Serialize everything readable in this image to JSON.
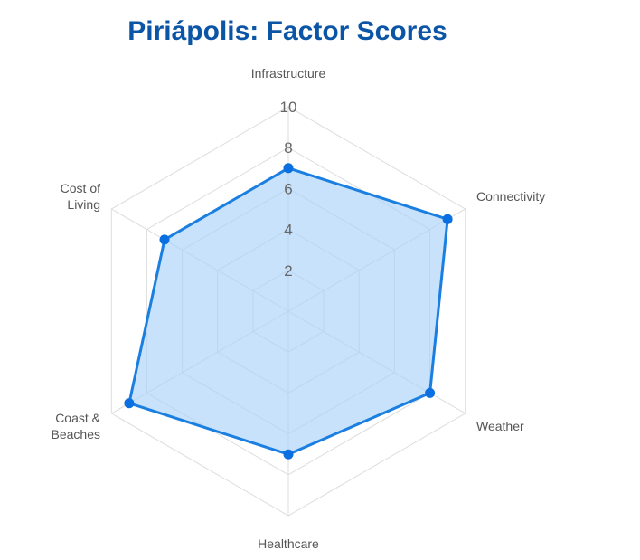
{
  "chart_data": {
    "type": "radar",
    "title": "Piriápolis: Factor Scores",
    "axes": [
      {
        "label": [
          "Infrastructure"
        ]
      },
      {
        "label": [
          "Connectivity"
        ]
      },
      {
        "label": [
          "Weather"
        ]
      },
      {
        "label": [
          "Healthcare"
        ]
      },
      {
        "label": [
          "Coast &",
          "Beaches"
        ]
      },
      {
        "label": [
          "Cost of",
          "Living"
        ]
      }
    ],
    "values": [
      7,
      9,
      8,
      7,
      9,
      7
    ],
    "range": [
      0,
      10
    ],
    "ticks": [
      2,
      4,
      6,
      8,
      10
    ],
    "tick_labels": [
      "2",
      "4",
      "6",
      "8",
      "10"
    ],
    "grid": true,
    "colors": {
      "title": "#0b55a6",
      "line": "#1a7fe0",
      "fill": "#a9d2f7",
      "point": "#0a6fe0",
      "grid": "#dddddd"
    }
  }
}
